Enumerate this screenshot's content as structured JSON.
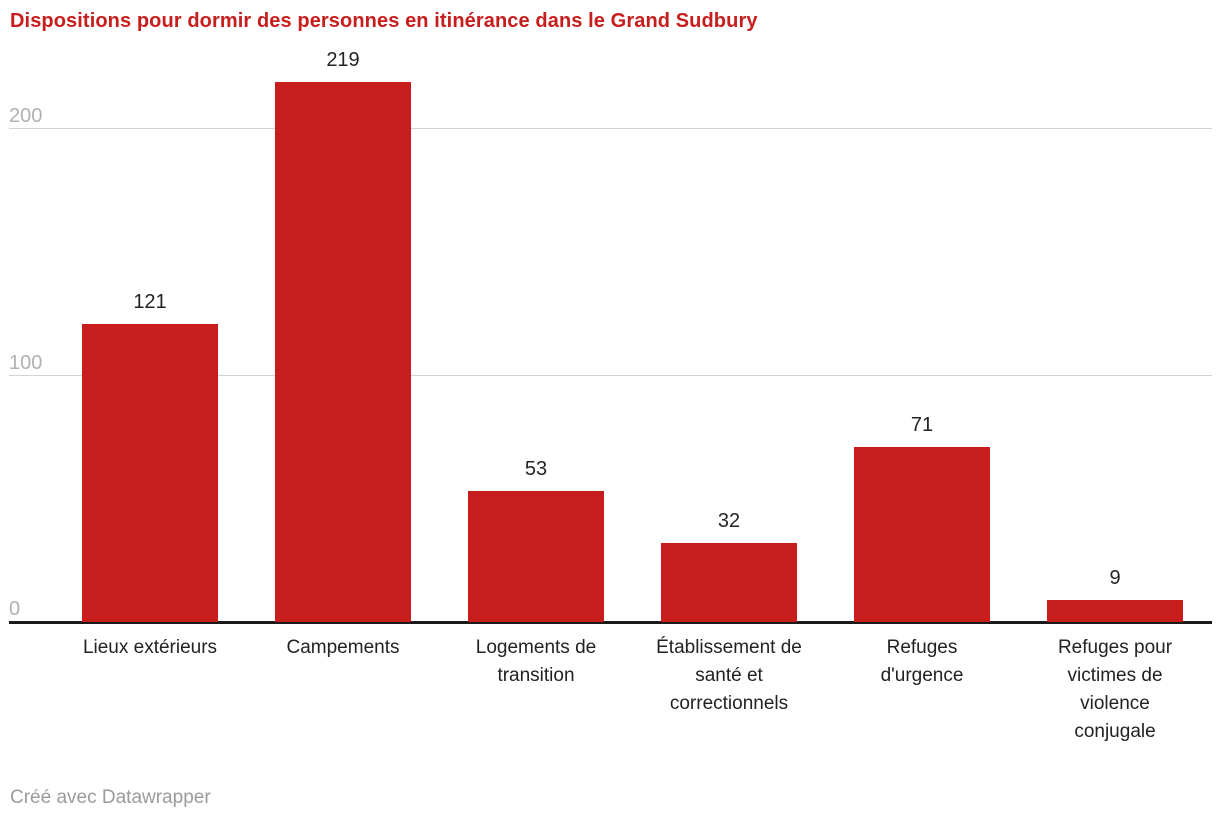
{
  "page": {
    "background": "#ffffff"
  },
  "header": {
    "title": "Dispositions pour dormir des personnes en itinérance dans le Grand Sudbury"
  },
  "chart_data": {
    "type": "bar",
    "title": "Dispositions pour dormir des personnes en itinérance dans le Grand Sudbury",
    "categories": [
      "Lieux extérieurs",
      "Campements",
      "Logements de transition",
      "Établissement de santé et correctionnels",
      "Refuges d'urgence",
      "Refuges pour victimes de violence conjugale"
    ],
    "categories_wrapped": [
      [
        "Lieux extérieurs"
      ],
      [
        "Campements"
      ],
      [
        "Logements de",
        "transition"
      ],
      [
        "Établissement de",
        "santé et",
        "correctionnels"
      ],
      [
        "Refuges",
        "d'urgence"
      ],
      [
        "Refuges pour",
        "victimes de",
        "violence",
        "conjugale"
      ]
    ],
    "values": [
      121,
      219,
      53,
      32,
      71,
      9
    ],
    "value_labels": [
      "121",
      "219",
      "53",
      "32",
      "71",
      "9"
    ],
    "yticks": [
      0,
      100,
      200
    ],
    "ytick_labels": [
      "0",
      "100",
      "200"
    ],
    "ylim": [
      0,
      238
    ],
    "xlabel": "",
    "ylabel": "",
    "grid": true,
    "legend": "none"
  },
  "colors": {
    "title": "#c71e1d",
    "bar": "#c71e1d",
    "gridline": "#d2d2d2",
    "axis_line": "#1a1a1a",
    "tick_label": "#b1b1b1",
    "value_label": "#222426",
    "category_label": "#222222",
    "credit": "#9b9b9b"
  },
  "footer": {
    "credit": "Créé avec Datawrapper"
  }
}
